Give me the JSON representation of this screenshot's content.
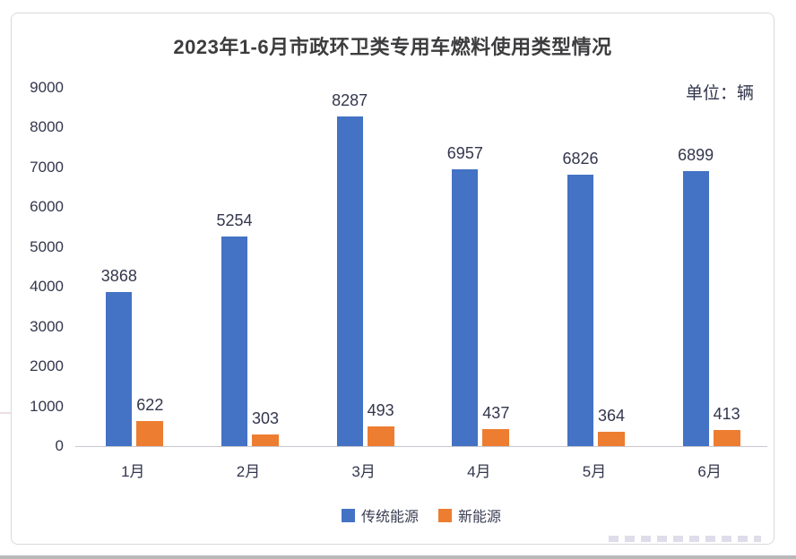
{
  "title": "2023年1-6月市政环卫类专用车燃料使用类型情况",
  "unit_label": "单位：辆",
  "chart_data": {
    "type": "bar",
    "title": "2023年1-6月市政环卫类专用车燃料使用类型情况",
    "subtitle": "单位：辆",
    "categories": [
      "1月",
      "2月",
      "3月",
      "4月",
      "5月",
      "6月"
    ],
    "series": [
      {
        "name": "传统能源",
        "color": "#4472C4",
        "values": [
          3868,
          5254,
          8287,
          6957,
          6826,
          6899
        ]
      },
      {
        "name": "新能源",
        "color": "#ED7D31",
        "values": [
          622,
          303,
          493,
          437,
          364,
          413
        ]
      }
    ],
    "xlabel": "",
    "ylabel": "",
    "ylim": [
      0,
      9000
    ],
    "ytick_step": 1000,
    "grid": false,
    "legend_position": "bottom",
    "value_labels": true
  }
}
